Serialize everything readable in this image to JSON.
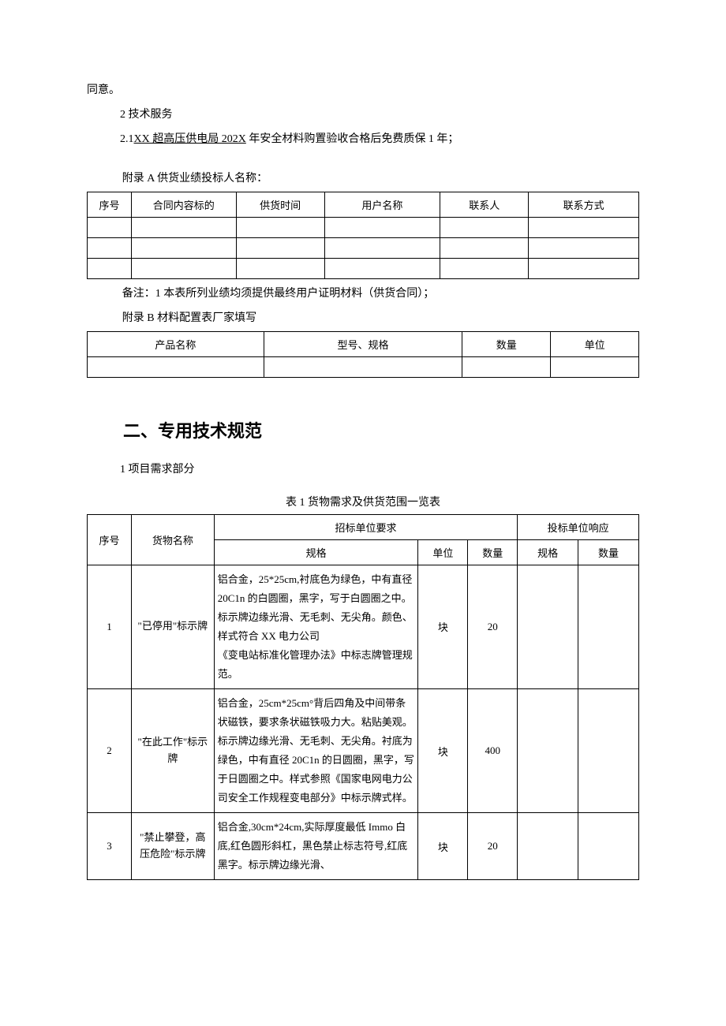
{
  "intro": {
    "agree": "同意。",
    "sec2_title": "2 技术服务",
    "sec21_prefix": "2.1",
    "sec21_link": "XX 超高压供电局 202X",
    "sec21_suffix": " 年安全材料购置验收合格后免费质保 1 年；"
  },
  "appendixA": {
    "title": "附录 A 供货业绩投标人名称：",
    "headers": [
      "序号",
      "合同内容标的",
      "供货时间",
      "用户名称",
      "联系人",
      "联系方式"
    ],
    "rows": [
      [
        "",
        "",
        "",
        "",
        "",
        ""
      ],
      [
        "",
        "",
        "",
        "",
        "",
        ""
      ],
      [
        "",
        "",
        "",
        "",
        "",
        ""
      ]
    ],
    "note": "备注：1 本表所列业绩均须提供最终用户证明材料（供货合同）；"
  },
  "appendixB": {
    "title": "附录 B 材料配置表厂家填写",
    "headers": [
      "产品名称",
      "型号、规格",
      "数量",
      "单位"
    ],
    "rows": [
      [
        "",
        "",
        "",
        ""
      ]
    ]
  },
  "section2": {
    "title": "二、专用技术规范",
    "sub1": "1 项目需求部分",
    "table_caption": "表 1 货物需求及供货范围一览表",
    "columns": {
      "seq": "序号",
      "name": "货物名称",
      "tender_req": "招标单位要求",
      "spec": "规格",
      "unit": "单位",
      "qty": "数量",
      "bidder": "投标单位响应",
      "b_spec": "规格",
      "b_qty": "数量"
    },
    "rows": [
      {
        "seq": "1",
        "name": "\"已停用\"标示牌",
        "spec": "铝合金，25*25cm,衬底色为绿色，中有直径20C1n 的白圆圈，黑字，写于白圆圈之中。标示牌边缘光滑、无毛刺、无尖角。颜色、样式符合 XX 电力公司\n《变电站标准化管理办法》中标志牌管理规范。",
        "unit": "块",
        "qty": "20",
        "b_spec": "",
        "b_qty": ""
      },
      {
        "seq": "2",
        "name": "\"在此工作\"标示牌",
        "spec": "铝合金，25cm*25cm°背后四角及中间带条状磁铁，要求条状磁铁吸力大。粘贴美观。标示牌边缘光滑、无毛刺、无尖角。衬底为绿色，中有直径 20C1n 的日圆圈，黑字，写于日圆圈之中。样式参照《国家电网电力公司安全工作规程变电部分》中标示牌式样。",
        "unit": "块",
        "qty": "400",
        "b_spec": "",
        "b_qty": ""
      },
      {
        "seq": "3",
        "name": "\"禁止攀登，高压危险\"标示牌",
        "spec": "铝合金,30cm*24cm,实际厚度最低 Immo 白底,红色圆形斜杠，黑色禁止标志符号,红底黑字。标示牌边缘光滑、",
        "unit": "块",
        "qty": "20",
        "b_spec": "",
        "b_qty": ""
      }
    ]
  },
  "col_widths": {
    "tableA": [
      "8%",
      "19%",
      "16%",
      "21%",
      "16%",
      "20%"
    ],
    "tableB": [
      "32%",
      "36%",
      "16%",
      "16%"
    ],
    "table2": [
      "8%",
      "15%",
      "37%",
      "9%",
      "9%",
      "11%",
      "11%"
    ]
  }
}
